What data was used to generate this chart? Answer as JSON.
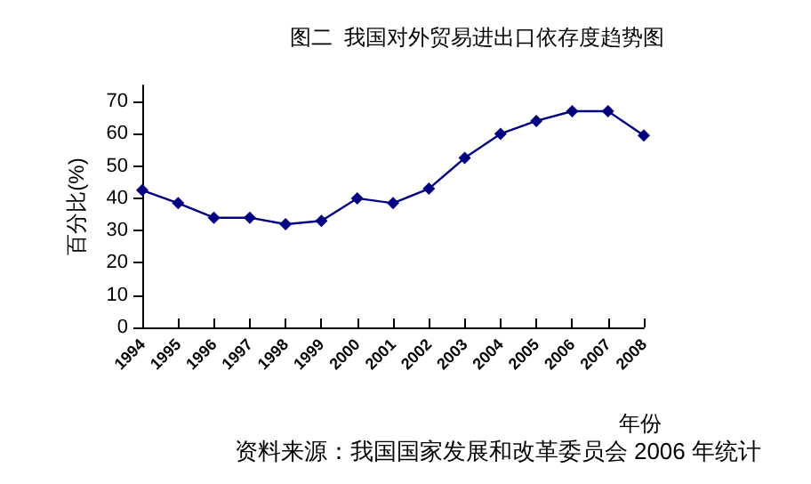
{
  "chart_data": {
    "type": "line",
    "title": "图二  我国对外贸易进出口依存度趋势图",
    "ylabel": "百分比(%)",
    "xlabel": "年份",
    "annotations": [
      "资料来源：我国国家发展和改革委员会 2006 年统计"
    ],
    "categories": [
      "1994",
      "1995",
      "1996",
      "1997",
      "1998",
      "1999",
      "2000",
      "2001",
      "2002",
      "2003",
      "2004",
      "2005",
      "2006",
      "2007",
      "2008"
    ],
    "series": [
      {
        "color": "#000080",
        "values": [
          42.5,
          38.5,
          34,
          34,
          32,
          33,
          40,
          38.5,
          43,
          52.5,
          60,
          64,
          67,
          67,
          59.5
        ]
      }
    ],
    "ylim": [
      0,
      75
    ],
    "yticks": [
      0,
      10,
      20,
      30,
      40,
      50,
      60,
      70
    ],
    "grid": false,
    "marker": "diamond",
    "line_style": "solid"
  }
}
